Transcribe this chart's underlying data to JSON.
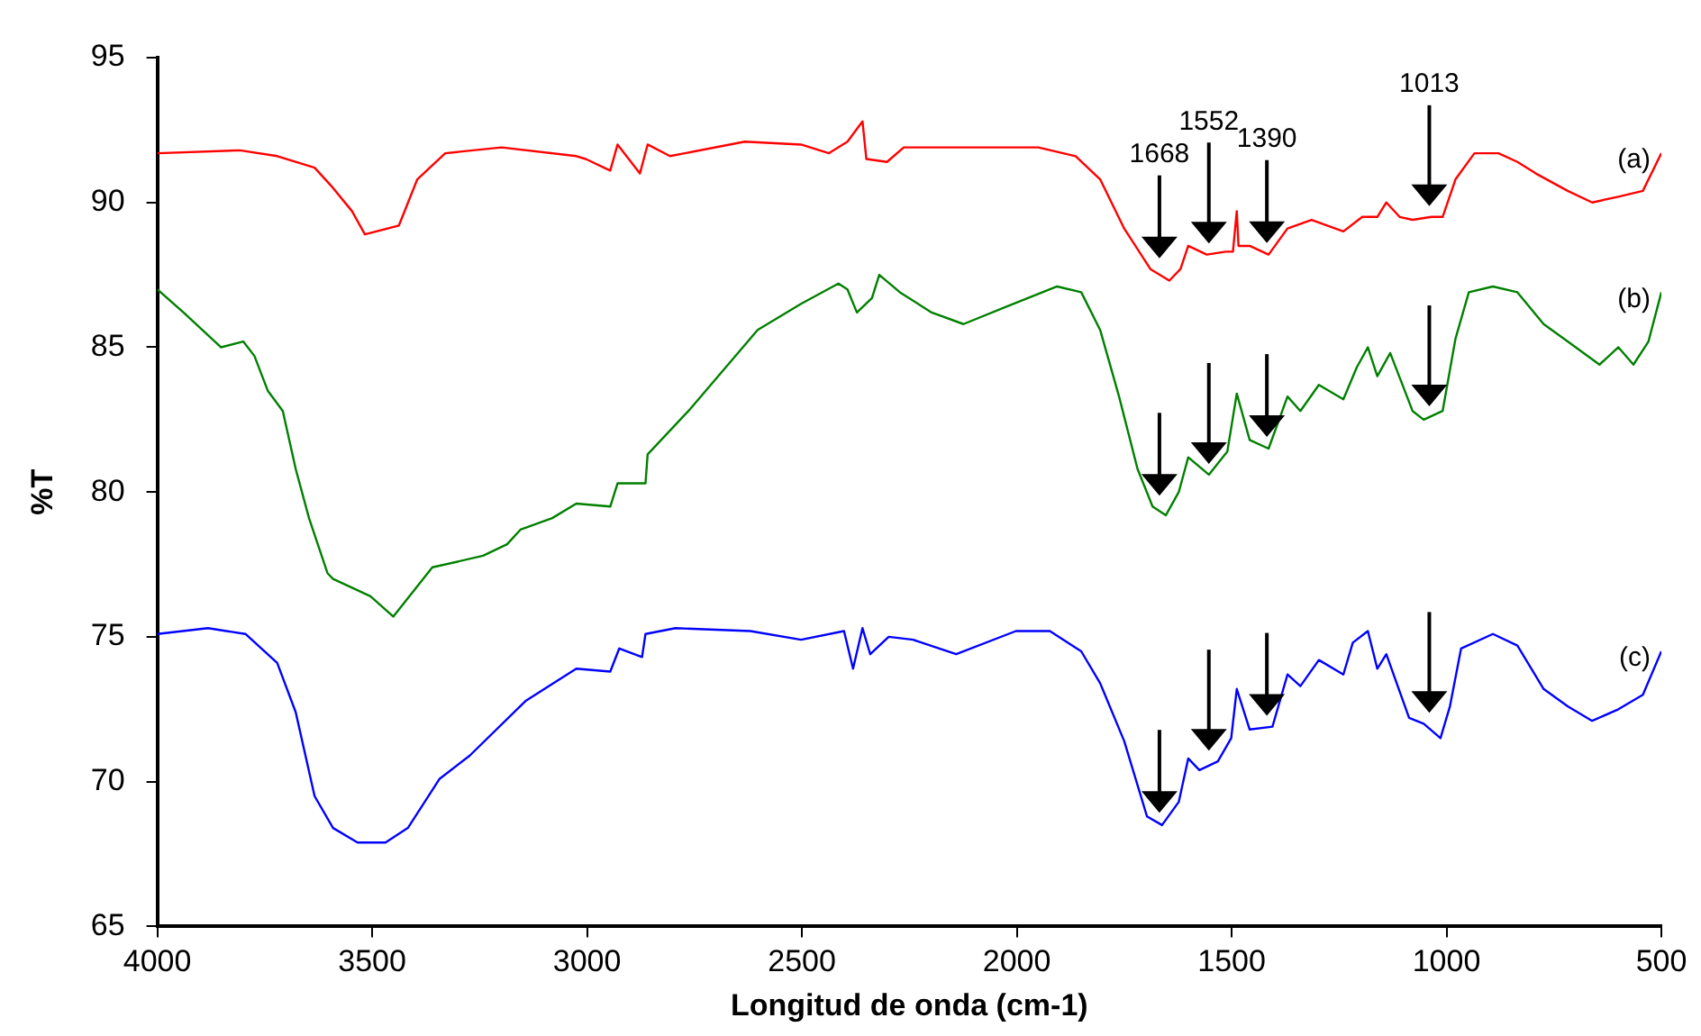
{
  "chart_data": {
    "type": "line",
    "xlabel": "Longitud de onda (cm-1)",
    "ylabel": "%T",
    "xlim": [
      4000,
      500
    ],
    "xticks": [
      4000,
      3500,
      3000,
      2500,
      2000,
      1500,
      1000,
      500
    ],
    "ylim": [
      65,
      95
    ],
    "yticks": [
      65,
      70,
      75,
      80,
      85,
      90,
      95
    ],
    "grid": false,
    "legend": false,
    "marker": "none",
    "line_style": "solid",
    "annotations": [
      {
        "text": "1668",
        "x": 1668
      },
      {
        "text": "1552",
        "x": 1553
      },
      {
        "text": "1390",
        "x": 1418
      },
      {
        "text": "1013",
        "x": 1040
      }
    ],
    "series": [
      {
        "name": "(a)",
        "color": "#ff0000",
        "x": [
          4000,
          3808,
          3721,
          3634,
          3591,
          3547,
          3517,
          3438,
          3395,
          3330,
          3199,
          3025,
          3003,
          2946,
          2929,
          2877,
          2859,
          2807,
          2633,
          2502,
          2437,
          2394,
          2359,
          2350,
          2302,
          2263,
          2241,
          1950,
          1863,
          1806,
          1750,
          1689,
          1645,
          1619,
          1601,
          1558,
          1514,
          1497,
          1488,
          1484,
          1458,
          1414,
          1370,
          1314,
          1240,
          1196,
          1161,
          1140,
          1109,
          1079,
          1035,
          1009,
          979,
          935,
          879,
          835,
          792,
          718,
          661,
          600,
          543,
          500
        ],
        "values": [
          91.7,
          91.8,
          91.6,
          91.2,
          90.5,
          89.7,
          88.9,
          89.2,
          90.8,
          91.7,
          91.9,
          91.6,
          91.5,
          91.1,
          92.0,
          91.0,
          92.0,
          91.6,
          92.1,
          92.0,
          91.7,
          92.1,
          92.8,
          91.5,
          91.4,
          91.9,
          91.9,
          91.9,
          91.6,
          90.8,
          89.1,
          87.7,
          87.3,
          87.7,
          88.5,
          88.2,
          88.3,
          88.3,
          89.7,
          88.5,
          88.5,
          88.2,
          89.1,
          89.4,
          89.0,
          89.5,
          89.5,
          90.0,
          89.5,
          89.4,
          89.5,
          89.5,
          90.8,
          91.7,
          91.7,
          91.4,
          91.0,
          90.4,
          90.0,
          90.2,
          90.4,
          91.7
        ]
      },
      {
        "name": "(b)",
        "color": "#008000",
        "x": [
          4000,
          3939,
          3852,
          3800,
          3774,
          3743,
          3708,
          3678,
          3647,
          3604,
          3591,
          3504,
          3451,
          3360,
          3242,
          3186,
          3155,
          3081,
          3025,
          2946,
          2929,
          2864,
          2859,
          2764,
          2603,
          2502,
          2415,
          2394,
          2372,
          2337,
          2320,
          2272,
          2198,
          2124,
          2024,
          1906,
          1850,
          1806,
          1762,
          1719,
          1684,
          1653,
          1623,
          1601,
          1553,
          1510,
          1488,
          1458,
          1414,
          1370,
          1340,
          1297,
          1240,
          1209,
          1183,
          1161,
          1131,
          1079,
          1053,
          1009,
          979,
          948,
          892,
          835,
          774,
          718,
          644,
          600,
          565,
          530,
          500
        ],
        "values": [
          87.0,
          86.2,
          85.0,
          85.2,
          84.7,
          83.5,
          82.8,
          80.8,
          79.1,
          77.2,
          77.0,
          76.4,
          75.7,
          77.4,
          77.8,
          78.2,
          78.7,
          79.1,
          79.6,
          79.5,
          80.3,
          80.3,
          81.3,
          82.8,
          85.6,
          86.5,
          87.2,
          87.0,
          86.2,
          86.7,
          87.5,
          86.9,
          86.2,
          85.8,
          86.4,
          87.1,
          86.9,
          85.6,
          83.3,
          80.8,
          79.5,
          79.2,
          80.0,
          81.2,
          80.6,
          81.4,
          83.4,
          81.8,
          81.5,
          83.3,
          82.8,
          83.7,
          83.2,
          84.3,
          85.0,
          84.0,
          84.8,
          82.8,
          82.5,
          82.8,
          85.3,
          86.9,
          87.1,
          86.9,
          85.8,
          85.2,
          84.4,
          85.0,
          84.4,
          85.2,
          86.9
        ]
      },
      {
        "name": "(c)",
        "color": "#0000ff",
        "x": [
          4000,
          3882,
          3795,
          3721,
          3678,
          3634,
          3591,
          3534,
          3469,
          3417,
          3343,
          3273,
          3142,
          3025,
          2946,
          2925,
          2872,
          2864,
          2794,
          2620,
          2502,
          2402,
          2381,
          2359,
          2341,
          2298,
          2241,
          2141,
          2002,
          1923,
          1850,
          1806,
          1750,
          1697,
          1662,
          1623,
          1601,
          1575,
          1532,
          1501,
          1488,
          1458,
          1405,
          1370,
          1340,
          1297,
          1240,
          1218,
          1183,
          1161,
          1140,
          1087,
          1053,
          1014,
          992,
          966,
          892,
          835,
          774,
          718,
          661,
          600,
          543,
          500
        ],
        "values": [
          75.1,
          75.3,
          75.1,
          74.1,
          72.4,
          69.5,
          68.4,
          67.9,
          67.9,
          68.4,
          70.1,
          70.9,
          72.8,
          73.9,
          73.8,
          74.6,
          74.3,
          75.1,
          75.3,
          75.2,
          74.9,
          75.2,
          73.9,
          75.3,
          74.4,
          75.0,
          74.9,
          74.4,
          75.2,
          75.2,
          74.5,
          73.4,
          71.4,
          68.8,
          68.5,
          69.3,
          70.8,
          70.4,
          70.7,
          71.5,
          73.2,
          71.8,
          71.9,
          73.7,
          73.3,
          74.2,
          73.7,
          74.8,
          75.2,
          73.9,
          74.4,
          72.2,
          72.0,
          71.5,
          72.6,
          74.6,
          75.1,
          74.7,
          73.2,
          72.6,
          72.1,
          72.5,
          73.0,
          74.5
        ]
      }
    ]
  }
}
